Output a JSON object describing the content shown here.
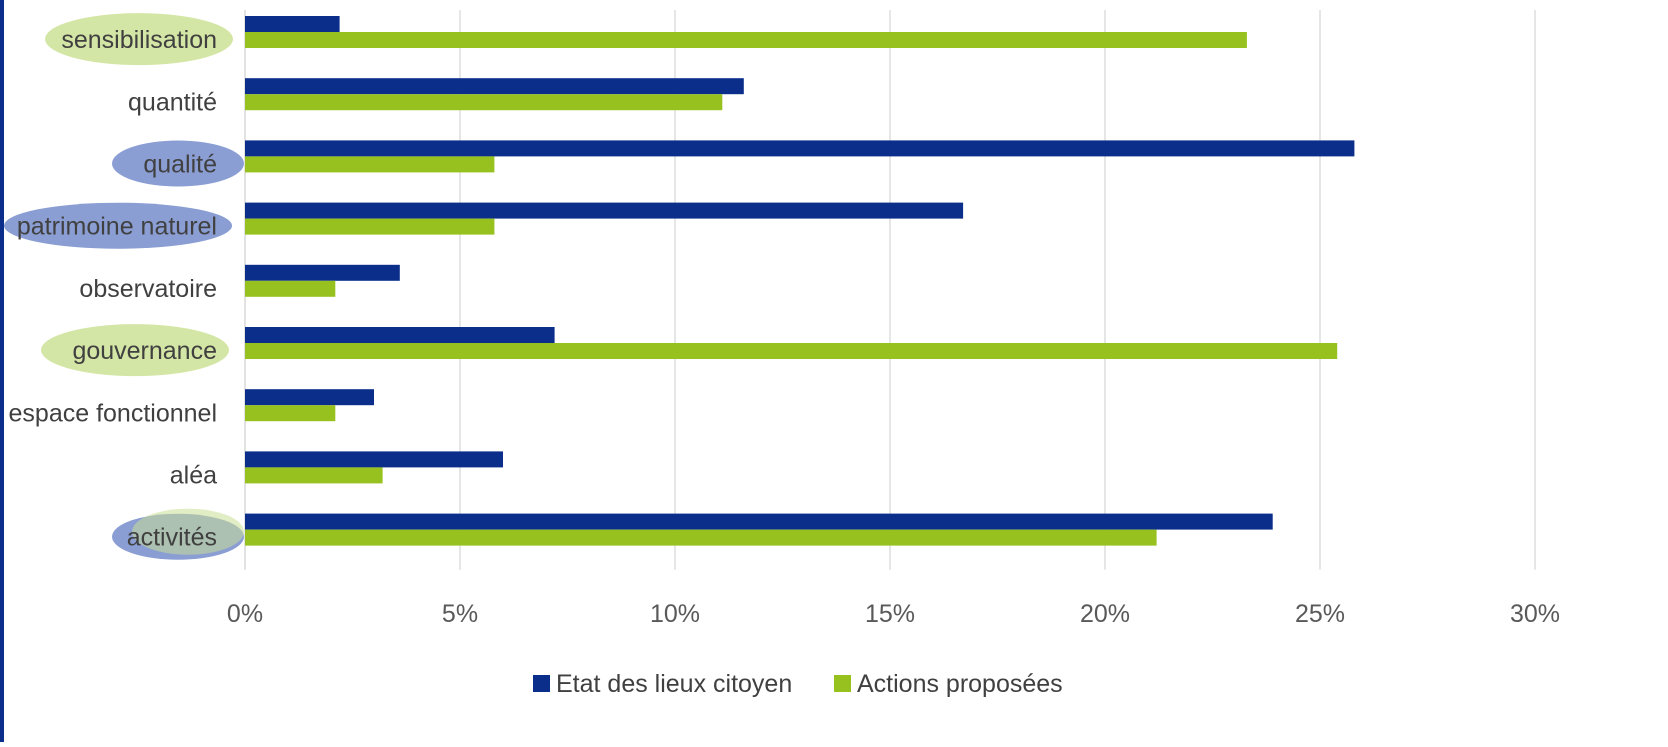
{
  "chart_data": {
    "type": "bar",
    "orientation": "horizontal",
    "categories": [
      "sensibilisation",
      "quantité",
      "qualité",
      "patrimoine naturel",
      "observatoire",
      "gouvernance",
      "espace fonctionnel",
      "aléa",
      "activités"
    ],
    "series": [
      {
        "name": "Etat des lieux citoyen",
        "color": "#0a2e8a",
        "values": [
          2.2,
          11.6,
          25.8,
          16.7,
          3.6,
          7.2,
          3.0,
          6.0,
          23.9
        ]
      },
      {
        "name": "Actions proposées",
        "color": "#97c11f",
        "values": [
          23.3,
          11.1,
          5.8,
          5.8,
          2.1,
          25.4,
          2.1,
          3.2,
          21.2
        ]
      }
    ],
    "xlim": [
      0,
      30
    ],
    "x_ticks": [
      "0%",
      "5%",
      "10%",
      "15%",
      "20%",
      "25%",
      "30%"
    ],
    "grid": true,
    "legend_position": "bottom",
    "highlights": [
      {
        "category": "sensibilisation",
        "color": "#d4e6a5"
      },
      {
        "category": "qualité",
        "color": "#8a9ed4"
      },
      {
        "category": "patrimoine naturel",
        "color": "#8a9ed4"
      },
      {
        "category": "gouvernance",
        "color": "#d4e6a5"
      },
      {
        "category": "activités",
        "color": "#8a9ed4"
      },
      {
        "category": "activités",
        "color": "#c8de93"
      }
    ]
  }
}
